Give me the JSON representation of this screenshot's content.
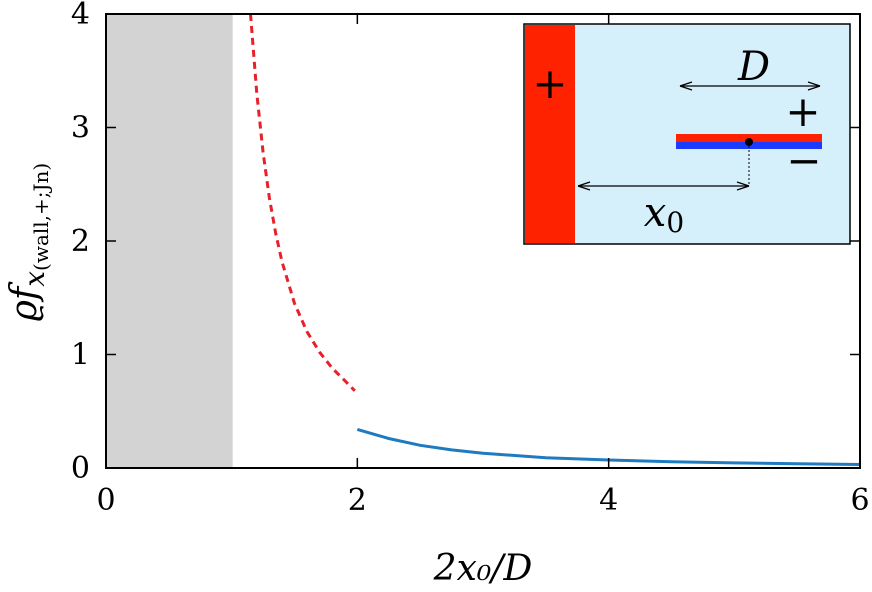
{
  "chart_data": {
    "type": "line",
    "xlabel": "2x₀/D",
    "ylabel": {
      "base": "ϱf",
      "sub1": "x",
      "sub2": "(wall,+;Jn)"
    },
    "xlim": [
      0,
      6
    ],
    "ylim": [
      0,
      4
    ],
    "xticks": [
      "0",
      "2",
      "4",
      "6"
    ],
    "yticks": [
      "0",
      "1",
      "2",
      "3",
      "4"
    ],
    "xtick_values": [
      0,
      2,
      4,
      6
    ],
    "ytick_values": [
      0,
      1,
      2,
      3,
      4
    ],
    "shaded_region": {
      "x": [
        0,
        1
      ],
      "color": "#d3d3d3"
    },
    "series": [
      {
        "style": "dashed",
        "color": "#e8202a",
        "x": [
          1.15,
          1.2,
          1.25,
          1.3,
          1.35,
          1.4,
          1.5,
          1.6,
          1.7,
          1.8,
          1.9,
          1.98
        ],
        "y": [
          4.0,
          3.3,
          2.78,
          2.38,
          2.07,
          1.82,
          1.45,
          1.2,
          1.02,
          0.88,
          0.77,
          0.68
        ]
      },
      {
        "style": "solid",
        "color": "#1f7bbf",
        "x": [
          2.0,
          2.25,
          2.5,
          2.75,
          3.0,
          3.5,
          4.0,
          4.5,
          5.0,
          5.5,
          6.0
        ],
        "y": [
          0.34,
          0.26,
          0.2,
          0.16,
          0.13,
          0.09,
          0.07,
          0.055,
          0.045,
          0.037,
          0.031
        ]
      }
    ],
    "inset": {
      "labels": {
        "D": "D",
        "x0_base": "x",
        "x0_sub": "0",
        "plus_wall": "+",
        "plus_plate": "+",
        "minus_plate": "−"
      },
      "colors": {
        "background": "#d6f0fb",
        "wall": "#ff2200",
        "plate_top": "#ff2200",
        "plate_bottom": "#1a3cff"
      }
    }
  }
}
